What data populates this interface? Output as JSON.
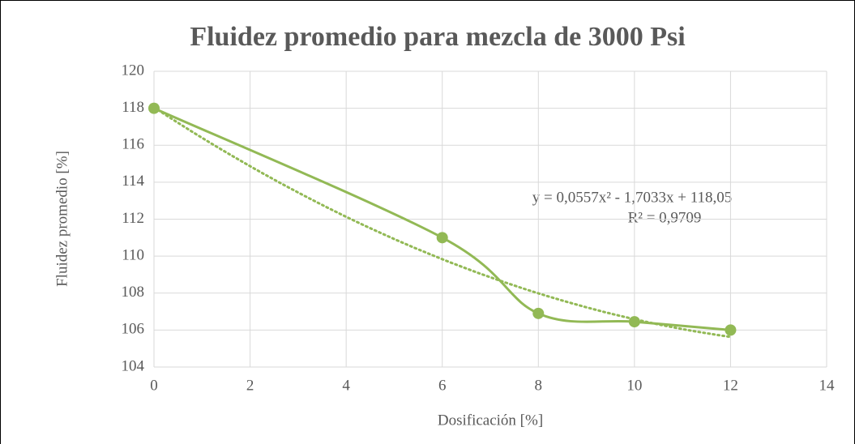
{
  "chart_data": {
    "type": "scatter",
    "title": "Fluidez promedio para mezcla de 3000 Psi",
    "xlabel": "Dosificación [%]",
    "ylabel": "Fluidez promedio [%]",
    "x": [
      0,
      6,
      8,
      10,
      12
    ],
    "series": [
      {
        "name": "Fluidez promedio",
        "color": "#92b955",
        "values": [
          118,
          111,
          106.9,
          106.45,
          106
        ]
      }
    ],
    "xlim": [
      0,
      14
    ],
    "xticks": [
      0,
      2,
      4,
      6,
      8,
      10,
      12,
      14
    ],
    "ylim": [
      104,
      120
    ],
    "yticks": [
      104,
      106,
      108,
      110,
      112,
      114,
      116,
      118,
      120
    ],
    "grid": true,
    "trendline": {
      "type": "polynomial",
      "coefficients": [
        0.0557,
        -1.7033,
        118.05
      ],
      "equation": "y = 0,0557x² - 1,7033x + 118,05",
      "r_squared": "R² = 0,9709"
    }
  }
}
